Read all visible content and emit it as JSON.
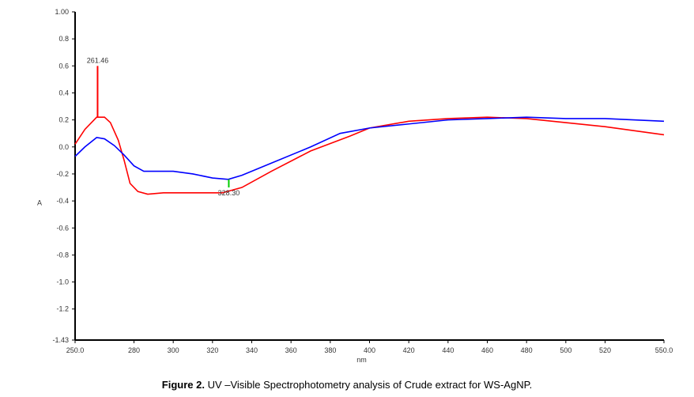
{
  "chart_data": {
    "type": "line",
    "title": "",
    "xlabel": "nm",
    "ylabel": "A",
    "xlim": [
      250,
      550
    ],
    "ylim": [
      -1.43,
      1.0
    ],
    "xticks": [
      {
        "v": 250,
        "l": "250.0"
      },
      {
        "v": 280,
        "l": "280"
      },
      {
        "v": 300,
        "l": "300"
      },
      {
        "v": 320,
        "l": "320"
      },
      {
        "v": 340,
        "l": "340"
      },
      {
        "v": 360,
        "l": "360"
      },
      {
        "v": 380,
        "l": "380"
      },
      {
        "v": 400,
        "l": "400"
      },
      {
        "v": 420,
        "l": "420"
      },
      {
        "v": 440,
        "l": "440"
      },
      {
        "v": 460,
        "l": "460"
      },
      {
        "v": 480,
        "l": "480"
      },
      {
        "v": 500,
        "l": "500"
      },
      {
        "v": 520,
        "l": "520"
      },
      {
        "v": 550,
        "l": "550.0"
      }
    ],
    "yticks": [
      {
        "v": 1.0,
        "l": "1.00"
      },
      {
        "v": 0.8,
        "l": "0.8"
      },
      {
        "v": 0.6,
        "l": "0.6"
      },
      {
        "v": 0.4,
        "l": "0.4"
      },
      {
        "v": 0.2,
        "l": "0.2"
      },
      {
        "v": 0.0,
        "l": "0.0"
      },
      {
        "v": -0.2,
        "l": "-0.2"
      },
      {
        "v": -0.4,
        "l": "-0.4"
      },
      {
        "v": -0.6,
        "l": "-0.6"
      },
      {
        "v": -0.8,
        "l": "-0.8"
      },
      {
        "v": -1.0,
        "l": "-1.0"
      },
      {
        "v": -1.2,
        "l": "-1.2"
      },
      {
        "v": -1.43,
        "l": "-1.43"
      }
    ],
    "series": [
      {
        "name": "red",
        "color": "#ff0000",
        "x": [
          250,
          255,
          261,
          265,
          268,
          272,
          275,
          278,
          282,
          287,
          295,
          310,
          325,
          335,
          350,
          370,
          390,
          400,
          420,
          440,
          460,
          480,
          500,
          520,
          550
        ],
        "y": [
          0.02,
          0.13,
          0.22,
          0.22,
          0.18,
          0.05,
          -0.1,
          -0.27,
          -0.33,
          -0.35,
          -0.34,
          -0.34,
          -0.34,
          -0.3,
          -0.18,
          -0.03,
          0.08,
          0.14,
          0.19,
          0.21,
          0.22,
          0.21,
          0.18,
          0.15,
          0.09
        ]
      },
      {
        "name": "blue",
        "color": "#0000ff",
        "x": [
          250,
          255,
          261,
          265,
          270,
          275,
          280,
          285,
          300,
          310,
          320,
          328,
          335,
          350,
          370,
          385,
          400,
          420,
          440,
          460,
          480,
          500,
          520,
          550
        ],
        "y": [
          -0.07,
          0.0,
          0.07,
          0.06,
          0.01,
          -0.06,
          -0.14,
          -0.18,
          -0.18,
          -0.2,
          -0.23,
          -0.24,
          -0.21,
          -0.12,
          0.0,
          0.1,
          0.14,
          0.17,
          0.2,
          0.21,
          0.22,
          0.21,
          0.21,
          0.19
        ]
      }
    ],
    "annotations": [
      {
        "label": "261.46",
        "x": 261.46,
        "y_from": 0.22,
        "y_to": 0.6,
        "color": "#ff0000"
      },
      {
        "label": "328.30",
        "x": 328.3,
        "y_from": -0.24,
        "y_to": -0.3,
        "color": "#00cc00"
      }
    ]
  },
  "caption": {
    "bold": "Figure 2.",
    "text": " UV –Visible Spectrophotometry analysis of Crude extract for WS-AgNP."
  }
}
